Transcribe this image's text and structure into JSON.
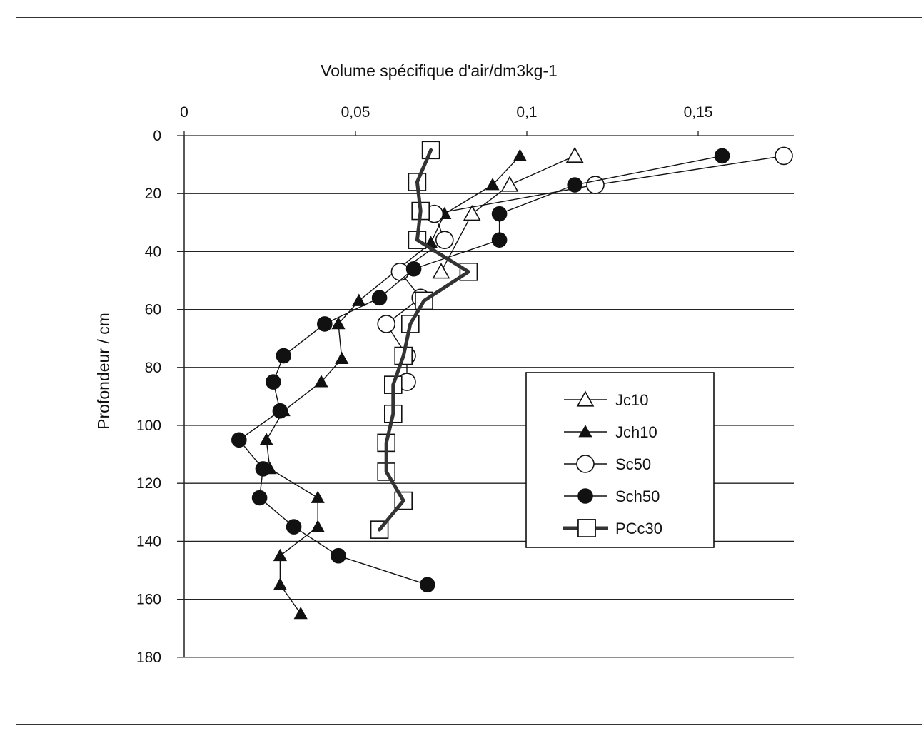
{
  "chart_data": {
    "type": "line",
    "xlabel": "Volume spécifique d'air/dm3kg-1",
    "ylabel": "Profondeur / cm",
    "x_ticks": [
      "0",
      "0,05",
      "0,1",
      "0,15"
    ],
    "y_ticks": [
      "0",
      "20",
      "40",
      "60",
      "80",
      "100",
      "120",
      "140",
      "160",
      "180"
    ],
    "xlim": [
      0,
      0.18
    ],
    "ylim": [
      0,
      180
    ],
    "y_inverted": true,
    "x_axis_position": "top",
    "grid": "horizontal",
    "legend_position": "lower-right",
    "series": [
      {
        "name": "Jc10",
        "marker": "open-triangle",
        "line": "thin",
        "points": [
          [
            0.114,
            7
          ],
          [
            0.095,
            17
          ],
          [
            0.084,
            27
          ],
          [
            0.075,
            47
          ]
        ]
      },
      {
        "name": "Jch10",
        "marker": "filled-triangle",
        "line": "thin",
        "points": [
          [
            0.098,
            7
          ],
          [
            0.09,
            17
          ],
          [
            0.076,
            27
          ],
          [
            0.072,
            37
          ],
          [
            0.051,
            57
          ],
          [
            0.045,
            65
          ],
          [
            0.046,
            77
          ],
          [
            0.04,
            85
          ],
          [
            0.029,
            95
          ],
          [
            0.024,
            105
          ],
          [
            0.025,
            115
          ],
          [
            0.039,
            125
          ],
          [
            0.039,
            135
          ],
          [
            0.028,
            145
          ],
          [
            0.028,
            155
          ],
          [
            0.034,
            165
          ]
        ]
      },
      {
        "name": "Sc50",
        "marker": "open-circle",
        "line": "thin",
        "points": [
          [
            0.175,
            7
          ],
          [
            0.12,
            17
          ],
          [
            0.073,
            27
          ],
          [
            0.076,
            36
          ],
          [
            0.063,
            47
          ],
          [
            0.069,
            56
          ],
          [
            0.059,
            65
          ],
          [
            0.065,
            76
          ],
          [
            0.065,
            85
          ]
        ]
      },
      {
        "name": "Sch50",
        "marker": "filled-circle",
        "line": "thin",
        "points": [
          [
            0.157,
            7
          ],
          [
            0.114,
            17
          ],
          [
            0.092,
            27
          ],
          [
            0.092,
            36
          ],
          [
            0.067,
            46
          ],
          [
            0.057,
            56
          ],
          [
            0.041,
            65
          ],
          [
            0.029,
            76
          ],
          [
            0.026,
            85
          ],
          [
            0.028,
            95
          ],
          [
            0.016,
            105
          ],
          [
            0.023,
            115
          ],
          [
            0.022,
            125
          ],
          [
            0.032,
            135
          ],
          [
            0.045,
            145
          ],
          [
            0.071,
            155
          ]
        ]
      },
      {
        "name": "PCc30",
        "marker": "open-square",
        "line": "thick",
        "points": [
          [
            0.072,
            5
          ],
          [
            0.068,
            16
          ],
          [
            0.069,
            26
          ],
          [
            0.068,
            36
          ],
          [
            0.083,
            47
          ],
          [
            0.07,
            57
          ],
          [
            0.066,
            65
          ],
          [
            0.064,
            76
          ],
          [
            0.061,
            86
          ],
          [
            0.061,
            96
          ],
          [
            0.059,
            106
          ],
          [
            0.059,
            116
          ],
          [
            0.064,
            126
          ],
          [
            0.057,
            136
          ]
        ]
      }
    ]
  }
}
